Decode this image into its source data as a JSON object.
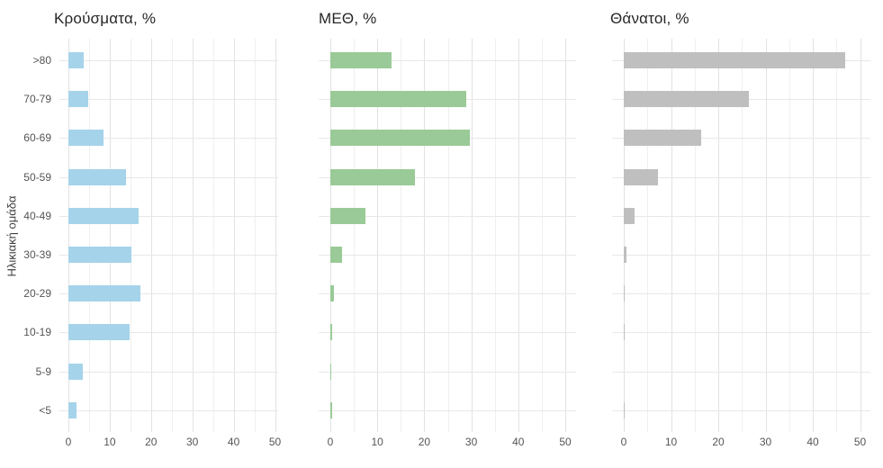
{
  "figure": {
    "y_axis_title": "Ηλικιακή ομάδα",
    "background_color": "#ffffff",
    "grid_major_color": "#e2e2e2",
    "grid_minor_color": "#efefef",
    "axis_text_color": "#555555",
    "title_text_color": "#262626"
  },
  "chart_data": [
    {
      "type": "bar",
      "orientation": "horizontal",
      "title": "Κρούσματα, %",
      "ylabel": "Ηλικιακή ομάδα",
      "categories": [
        ">80",
        "70-79",
        "60-69",
        "50-59",
        "40-49",
        "30-39",
        "20-29",
        "10-19",
        "5-9",
        "<5"
      ],
      "values": [
        3.7,
        4.8,
        8.6,
        14.0,
        17.0,
        15.2,
        17.4,
        14.9,
        3.5,
        1.9
      ],
      "bar_color": "#a5d3ea",
      "xlim": [
        0,
        50
      ],
      "xticks": [
        0,
        10,
        20,
        30,
        40,
        50
      ],
      "grid": true,
      "legend": false
    },
    {
      "type": "bar",
      "orientation": "horizontal",
      "title": "ΜΕΘ, %",
      "ylabel": "Ηλικιακή ομάδα",
      "categories": [
        ">80",
        "70-79",
        "60-69",
        "50-59",
        "40-49",
        "30-39",
        "20-29",
        "10-19",
        "5-9",
        "<5"
      ],
      "values": [
        13.1,
        29.0,
        29.6,
        18.1,
        7.4,
        2.5,
        0.8,
        0.4,
        0.15,
        0.3
      ],
      "bar_color": "#9aca97",
      "xlim": [
        0,
        50
      ],
      "xticks": [
        0,
        10,
        20,
        30,
        40,
        50
      ],
      "grid": true,
      "legend": false
    },
    {
      "type": "bar",
      "orientation": "horizontal",
      "title": "Θάνατοι, %",
      "ylabel": "Ηλικιακή ομάδα",
      "categories": [
        ">80",
        "70-79",
        "60-69",
        "50-59",
        "40-49",
        "30-39",
        "20-29",
        "10-19",
        "5-9",
        "<5"
      ],
      "values": [
        46.9,
        26.5,
        16.4,
        7.3,
        2.2,
        0.6,
        0.1,
        0.2,
        0,
        0.1
      ],
      "bar_color": "#bfbfbf",
      "xlim": [
        0,
        50
      ],
      "xticks": [
        0,
        10,
        20,
        30,
        40,
        50
      ],
      "grid": true,
      "legend": false
    }
  ]
}
